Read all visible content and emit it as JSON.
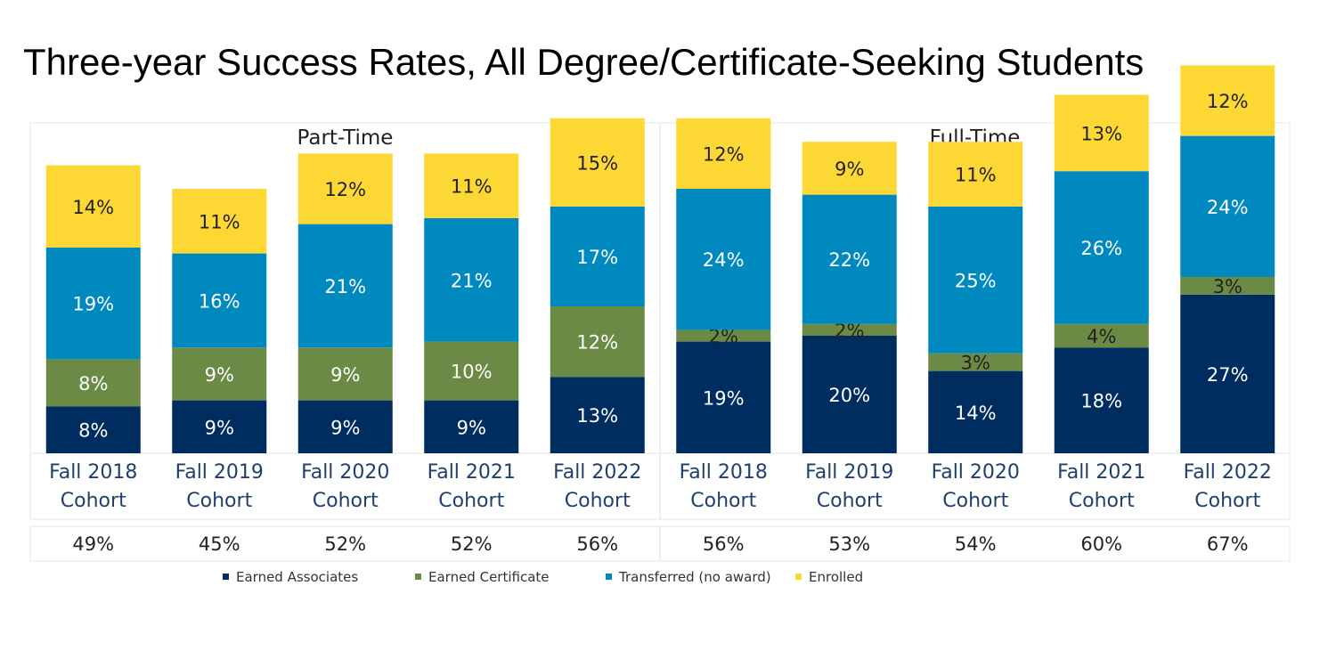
{
  "chart_data": {
    "type": "bar",
    "stacked": true,
    "title": "Three-year Success Rates, All Degree/Certificate-Seeking Students",
    "groups": [
      "Part-Time",
      "Full-Time"
    ],
    "categories": [
      "Fall 2018 Cohort",
      "Fall 2019 Cohort",
      "Fall 2020 Cohort",
      "Fall 2021 Cohort",
      "Fall 2022 Cohort",
      "Fall 2018 Cohort",
      "Fall 2019 Cohort",
      "Fall 2020 Cohort",
      "Fall 2021 Cohort",
      "Fall 2022 Cohort"
    ],
    "category_lines": [
      [
        "Fall 2018",
        "Cohort"
      ],
      [
        "Fall 2019",
        "Cohort"
      ],
      [
        "Fall 2020",
        "Cohort"
      ],
      [
        "Fall 2021",
        "Cohort"
      ],
      [
        "Fall 2022",
        "Cohort"
      ],
      [
        "Fall 2018",
        "Cohort"
      ],
      [
        "Fall 2019",
        "Cohort"
      ],
      [
        "Fall 2020",
        "Cohort"
      ],
      [
        "Fall 2021",
        "Cohort"
      ],
      [
        "Fall 2022",
        "Cohort"
      ]
    ],
    "category_group": [
      0,
      0,
      0,
      0,
      0,
      1,
      1,
      1,
      1,
      1
    ],
    "series": [
      {
        "name": "Earned Associates",
        "color": "#002d5f",
        "values": [
          8,
          9,
          9,
          9,
          13,
          19,
          20,
          14,
          18,
          27
        ]
      },
      {
        "name": "Earned Certificate",
        "color": "#6b8a45",
        "values": [
          8,
          9,
          9,
          10,
          12,
          2,
          2,
          3,
          4,
          3
        ]
      },
      {
        "name": "Transferred (no award)",
        "color": "#0089bf",
        "values": [
          19,
          16,
          21,
          21,
          17,
          24,
          22,
          25,
          26,
          24
        ]
      },
      {
        "name": "Enrolled",
        "color": "#fdd835",
        "values": [
          14,
          11,
          12,
          11,
          15,
          12,
          9,
          11,
          13,
          12
        ]
      }
    ],
    "totals": [
      "49%",
      "45%",
      "52%",
      "52%",
      "56%",
      "56%",
      "53%",
      "54%",
      "60%",
      "67%"
    ],
    "legend_position": "bottom",
    "grid": false,
    "ylim": [
      0,
      70
    ]
  }
}
